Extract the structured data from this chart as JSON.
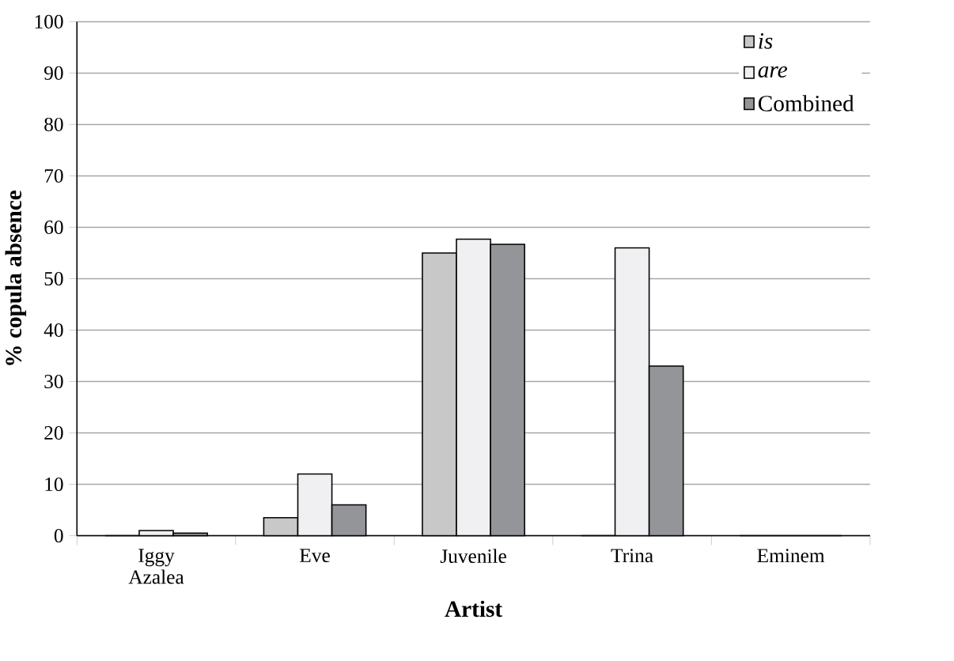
{
  "chart_data": {
    "type": "bar",
    "xlabel": "Artist",
    "ylabel": "% copula absence",
    "categories": [
      "Iggy Azalea",
      "Eve",
      "Juvenile",
      "Trina",
      "Eminem"
    ],
    "series": [
      {
        "name": "*is*",
        "color": "#c8c8c8",
        "values": [
          0,
          3.5,
          55,
          0,
          0
        ]
      },
      {
        "name": "*are*",
        "color": "#f0f0f2",
        "values": [
          1,
          12,
          57.7,
          56,
          0
        ]
      },
      {
        "name": "Combined",
        "color": "#939598",
        "values": [
          0.5,
          6,
          56.7,
          33,
          0
        ]
      }
    ],
    "ylim": [
      0,
      100
    ],
    "yticks": [
      0,
      10,
      20,
      30,
      40,
      50,
      60,
      70,
      80,
      90,
      100
    ],
    "grid": "y",
    "legend": "top right"
  }
}
